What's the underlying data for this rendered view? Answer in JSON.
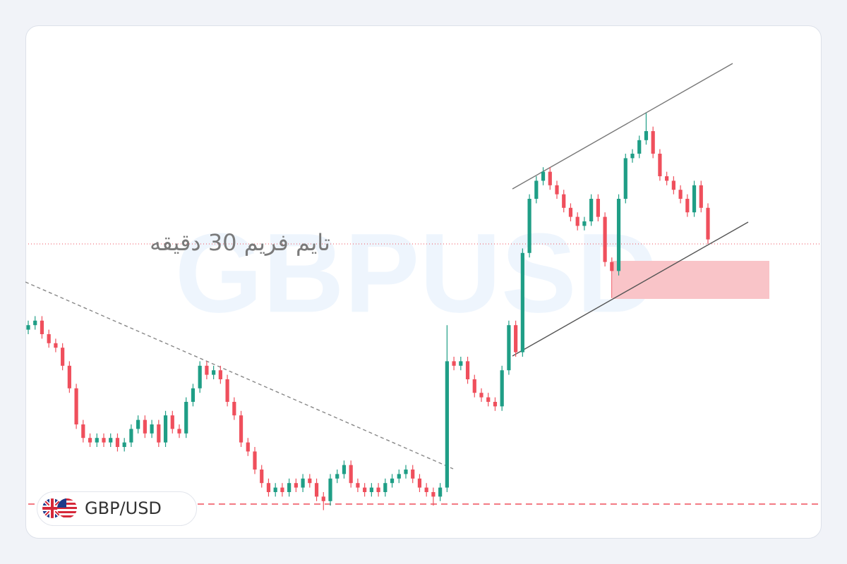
{
  "chart_data": {
    "type": "candlestick",
    "watermark": "GBPUSD",
    "annotation": "تایم فریم 30 دقیقه",
    "symbol_label": "GBP/USD",
    "ylim": [
      0,
      100
    ],
    "colors": {
      "up": "#1f9e86",
      "down": "#ef4f5c"
    },
    "open": [
      41,
      42,
      43,
      40,
      38,
      37,
      33,
      28,
      20,
      17,
      16,
      17,
      16,
      17,
      15,
      16,
      19,
      21,
      18,
      20,
      16,
      22,
      19,
      18,
      25,
      28,
      33,
      31,
      32,
      30,
      25,
      22,
      16,
      14,
      10,
      7,
      5,
      6,
      5,
      7,
      6,
      8,
      7,
      4,
      3,
      8,
      9,
      11,
      7,
      6,
      5,
      6,
      5,
      7,
      8,
      9,
      10,
      8,
      6,
      5,
      4,
      6,
      34,
      33,
      34,
      30,
      27,
      26,
      25,
      24,
      32,
      42,
      36,
      58,
      70,
      74,
      76,
      73,
      71,
      68,
      66,
      64,
      65,
      70,
      66,
      56,
      54,
      70,
      79,
      80,
      83,
      85,
      80,
      75,
      74,
      72,
      70,
      67,
      73,
      68
    ],
    "high": [
      43,
      44,
      44,
      41,
      39,
      38,
      34,
      29,
      21,
      18,
      18,
      18,
      18,
      18,
      17,
      20,
      22,
      22,
      21,
      21,
      23,
      23,
      20,
      26,
      29,
      34,
      34,
      33,
      33,
      31,
      26,
      23,
      17,
      15,
      11,
      8,
      7,
      7,
      8,
      8,
      9,
      9,
      8,
      5,
      9,
      10,
      12,
      12,
      8,
      7,
      7,
      7,
      8,
      9,
      10,
      11,
      11,
      9,
      7,
      6,
      7,
      42,
      35,
      35,
      35,
      31,
      28,
      27,
      26,
      33,
      43,
      43,
      59,
      71,
      75,
      77,
      77,
      74,
      72,
      69,
      67,
      66,
      71,
      71,
      67,
      57,
      71,
      80,
      81,
      84,
      89,
      86,
      81,
      76,
      75,
      73,
      71,
      74,
      74,
      69
    ],
    "low": [
      40,
      41,
      39,
      37,
      36,
      32,
      27,
      19,
      16,
      15,
      15,
      15,
      15,
      14,
      14,
      15,
      18,
      17,
      17,
      15,
      15,
      18,
      17,
      17,
      24,
      27,
      30,
      30,
      29,
      24,
      21,
      15,
      13,
      9,
      6,
      4,
      4,
      4,
      4,
      5,
      5,
      6,
      3,
      1,
      2,
      7,
      8,
      6,
      5,
      4,
      4,
      4,
      4,
      6,
      7,
      8,
      7,
      5,
      4,
      2,
      3,
      5,
      32,
      32,
      29,
      26,
      25,
      24,
      23,
      23,
      31,
      35,
      35,
      57,
      69,
      73,
      72,
      70,
      67,
      65,
      63,
      63,
      64,
      65,
      55,
      48,
      53,
      69,
      78,
      79,
      82,
      79,
      74,
      73,
      71,
      69,
      66,
      66,
      67,
      60
    ],
    "close": [
      42,
      43,
      40,
      38,
      37,
      33,
      28,
      20,
      17,
      16,
      17,
      16,
      17,
      15,
      16,
      19,
      21,
      18,
      20,
      16,
      22,
      19,
      18,
      25,
      28,
      33,
      31,
      32,
      30,
      25,
      22,
      16,
      14,
      10,
      7,
      5,
      6,
      5,
      7,
      6,
      8,
      7,
      4,
      3,
      8,
      9,
      11,
      7,
      6,
      5,
      6,
      5,
      7,
      8,
      9,
      10,
      8,
      6,
      5,
      4,
      6,
      34,
      33,
      34,
      30,
      27,
      26,
      25,
      24,
      32,
      42,
      36,
      58,
      70,
      74,
      76,
      73,
      71,
      68,
      66,
      64,
      65,
      70,
      66,
      56,
      54,
      70,
      79,
      80,
      83,
      85,
      80,
      75,
      74,
      72,
      70,
      67,
      73,
      68,
      61
    ]
  }
}
